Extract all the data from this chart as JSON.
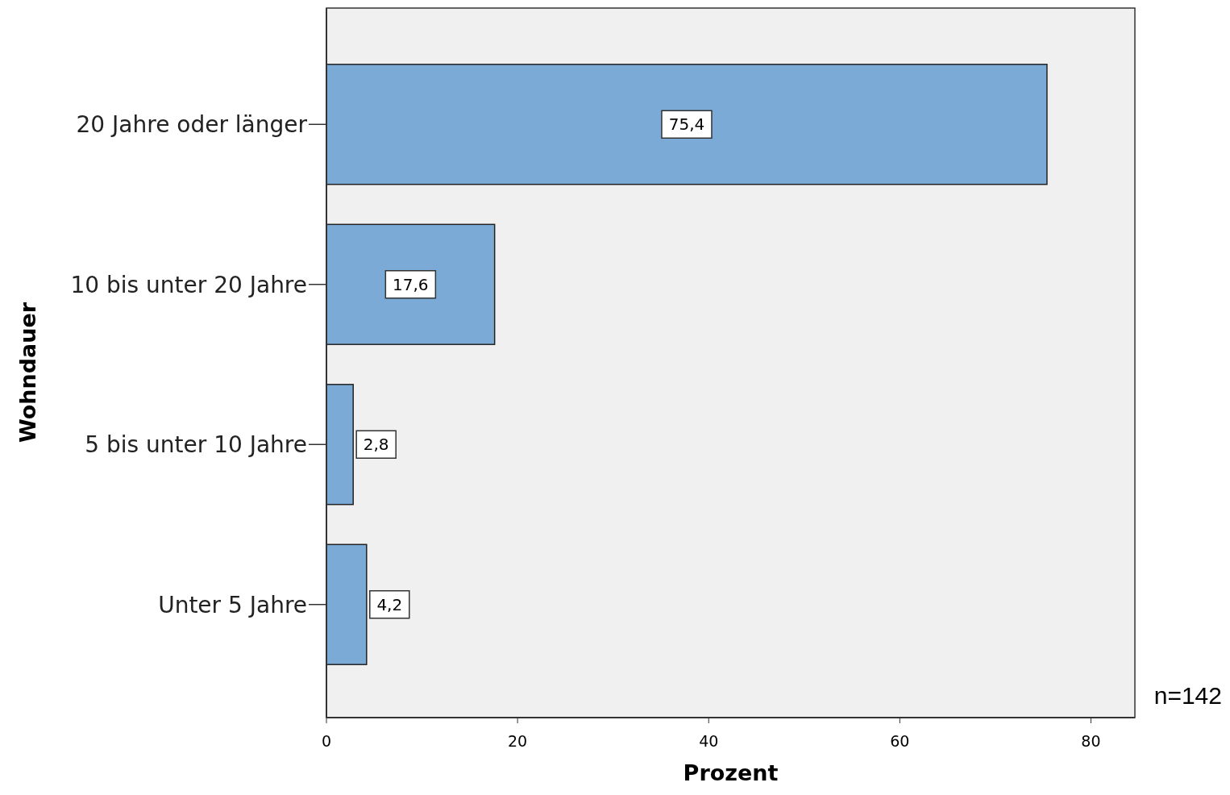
{
  "chart_data": {
    "type": "bar",
    "orientation": "horizontal",
    "categories": [
      "20 Jahre oder länger",
      "10 bis unter 20 Jahre",
      "5 bis unter 10 Jahre",
      "Unter 5 Jahre"
    ],
    "values": [
      75.4,
      17.6,
      2.8,
      4.2
    ],
    "value_labels": [
      "75,4",
      "17,6",
      "2,8",
      "4,2"
    ],
    "color": "#7baad6",
    "xlim": [
      0,
      84.6
    ],
    "xticks": [
      0,
      20,
      40,
      60,
      80
    ],
    "xlabel": "Prozent",
    "ylabel": "Wohndauer",
    "grid": false,
    "annotations": [
      "n=142"
    ]
  }
}
